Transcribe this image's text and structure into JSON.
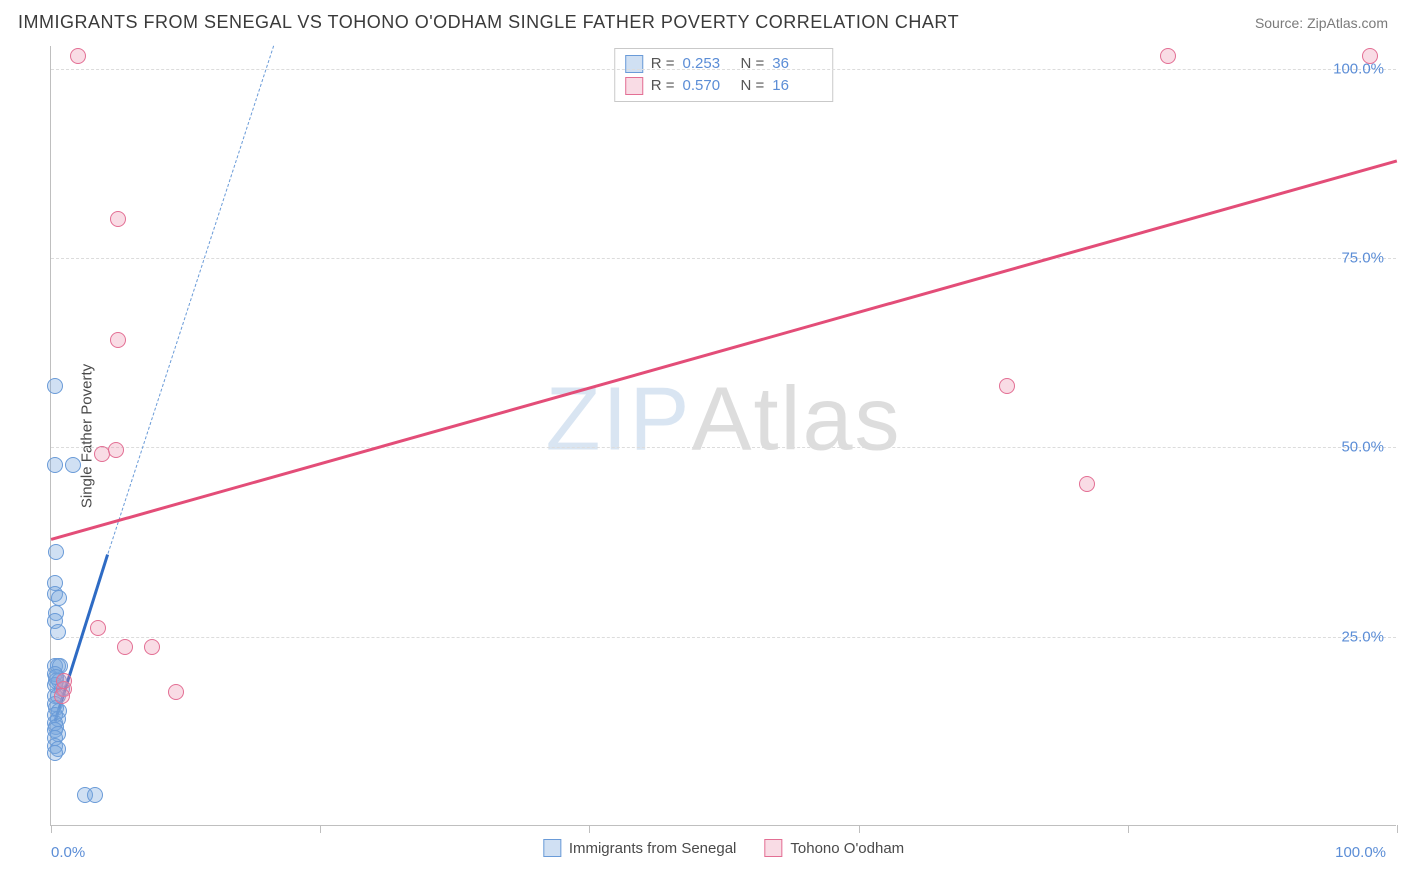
{
  "header": {
    "title": "IMMIGRANTS FROM SENEGAL VS TOHONO O'ODHAM SINGLE FATHER POVERTY CORRELATION CHART",
    "source": "Source: ZipAtlas.com"
  },
  "chart": {
    "type": "scatter",
    "ylabel": "Single Father Poverty",
    "xlim": [
      0,
      100
    ],
    "ylim": [
      0,
      103
    ],
    "xtick_labels": [
      "0.0%",
      "100.0%"
    ],
    "ytick_labels": [
      "25.0%",
      "50.0%",
      "75.0%",
      "100.0%"
    ],
    "ytick_values": [
      25,
      50,
      75,
      100
    ],
    "xtick_values": [
      0,
      20,
      40,
      60,
      80,
      100
    ],
    "grid_color": "#dcdcdc",
    "axis_color": "#bfbfbf",
    "background_color": "#ffffff",
    "tick_label_color": "#5b8dd6",
    "axis_label_color": "#4a4a4a",
    "point_radius": 8,
    "series": [
      {
        "id": "senegal",
        "label": "Immigrants from Senegal",
        "fill": "rgba(120,165,220,0.35)",
        "stroke": "#6a9bd8",
        "r_value": "0.253",
        "n_value": "36",
        "trend_solid": {
          "x1": 0.3,
          "y1": 14,
          "x2": 4.2,
          "y2": 36,
          "color": "#2e6bc4",
          "width": 3
        },
        "trend_dash": {
          "x1": 4.2,
          "y1": 36,
          "x2": 16.5,
          "y2": 103,
          "color": "#6a9bd8"
        },
        "points": [
          [
            0.3,
            47.5
          ],
          [
            1.6,
            47.5
          ],
          [
            0.3,
            58
          ],
          [
            0.4,
            36
          ],
          [
            0.3,
            32
          ],
          [
            0.3,
            30.5
          ],
          [
            0.6,
            30
          ],
          [
            0.4,
            28
          ],
          [
            0.3,
            27
          ],
          [
            0.5,
            25.5
          ],
          [
            0.3,
            21
          ],
          [
            0.5,
            21
          ],
          [
            0.7,
            21
          ],
          [
            0.3,
            20
          ],
          [
            0.4,
            19
          ],
          [
            0.6,
            19
          ],
          [
            0.3,
            18.5
          ],
          [
            0.8,
            18
          ],
          [
            0.3,
            17
          ],
          [
            0.5,
            17
          ],
          [
            0.3,
            16
          ],
          [
            0.4,
            15.5
          ],
          [
            0.6,
            15
          ],
          [
            0.3,
            14.5
          ],
          [
            0.5,
            14
          ],
          [
            0.3,
            13.5
          ],
          [
            0.4,
            13
          ],
          [
            0.3,
            12.5
          ],
          [
            0.5,
            12
          ],
          [
            0.3,
            11.5
          ],
          [
            0.3,
            10.5
          ],
          [
            0.5,
            10
          ],
          [
            0.3,
            9.5
          ],
          [
            2.5,
            4
          ],
          [
            3.3,
            4
          ],
          [
            0.4,
            19.5
          ]
        ]
      },
      {
        "id": "tohono",
        "label": "Tohono O'odham",
        "fill": "rgba(235,140,170,0.30)",
        "stroke": "#e36f94",
        "r_value": "0.570",
        "n_value": "16",
        "trend_solid": {
          "x1": 0,
          "y1": 38,
          "x2": 100,
          "y2": 88,
          "color": "#e34d78",
          "width": 2.5
        },
        "points": [
          [
            2.0,
            101.5
          ],
          [
            83,
            101.5
          ],
          [
            98,
            101.5
          ],
          [
            5.0,
            80
          ],
          [
            5.0,
            64
          ],
          [
            71,
            58
          ],
          [
            77,
            45
          ],
          [
            3.8,
            49
          ],
          [
            4.8,
            49.5
          ],
          [
            3.5,
            26
          ],
          [
            5.5,
            23.5
          ],
          [
            7.5,
            23.5
          ],
          [
            9.3,
            17.5
          ],
          [
            1.0,
            18
          ],
          [
            1.0,
            19
          ],
          [
            0.8,
            17
          ]
        ]
      }
    ],
    "legend_stats": {
      "r_label": "R =",
      "n_label": "N ="
    },
    "watermark": {
      "part1": "ZIP",
      "part2": "Atlas"
    }
  }
}
